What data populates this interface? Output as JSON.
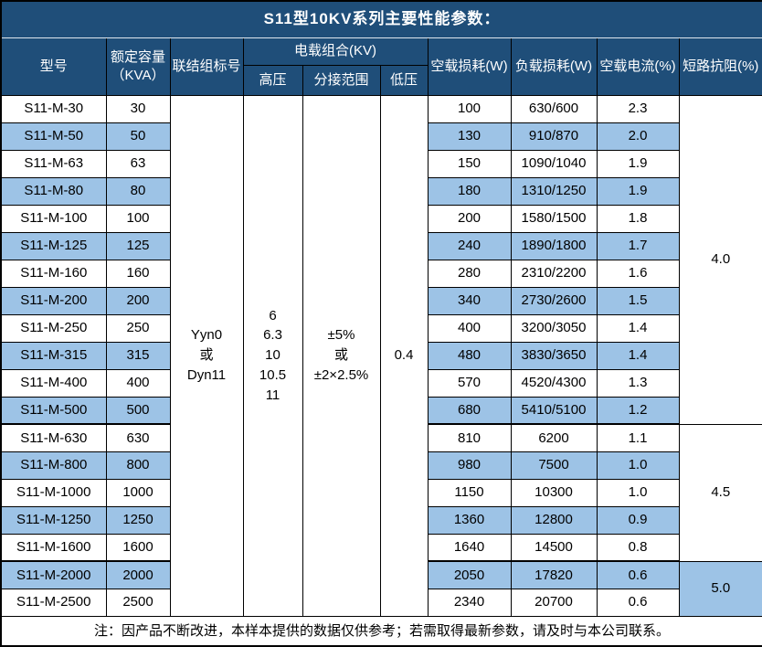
{
  "title": "S11型10KV系列主要性能参数：",
  "colors": {
    "header_bg": "#1F4E79",
    "alt_row_bg": "#9DC3E6",
    "border": "#000000"
  },
  "header": {
    "model": "型号",
    "capacity": "额定容量\n（KVA）",
    "connection": "联结组标号",
    "load_combo": "电载组合(KV)",
    "hv": "高压",
    "tap_range": "分接范围",
    "lv": "低压",
    "no_load_loss": "空载损耗(W)",
    "load_loss": "负载损耗(W)",
    "no_load_current": "空载电流(%)",
    "impedance": "短路抗阻(%)"
  },
  "merged": {
    "connection": "Yyn0\n或\nDyn11",
    "hv": "6\n6.3\n10\n10.5\n11",
    "tap_range": "±5%\n或\n±2×2.5%",
    "lv": "0.4"
  },
  "impedance_groups": [
    {
      "value": "4.0",
      "rows": 12
    },
    {
      "value": "4.5",
      "rows": 5
    },
    {
      "value": "5.0",
      "rows": 2
    }
  ],
  "rows": [
    {
      "model": "S11-M-30",
      "kva": "30",
      "no_load_loss": "100",
      "load_loss": "630/600",
      "current": "2.3"
    },
    {
      "model": "S11-M-50",
      "kva": "50",
      "no_load_loss": "130",
      "load_loss": "910/870",
      "current": "2.0"
    },
    {
      "model": "S11-M-63",
      "kva": "63",
      "no_load_loss": "150",
      "load_loss": "1090/1040",
      "current": "1.9"
    },
    {
      "model": "S11-M-80",
      "kva": "80",
      "no_load_loss": "180",
      "load_loss": "1310/1250",
      "current": "1.9"
    },
    {
      "model": "S11-M-100",
      "kva": "100",
      "no_load_loss": "200",
      "load_loss": "1580/1500",
      "current": "1.8"
    },
    {
      "model": "S11-M-125",
      "kva": "125",
      "no_load_loss": "240",
      "load_loss": "1890/1800",
      "current": "1.7"
    },
    {
      "model": "S11-M-160",
      "kva": "160",
      "no_load_loss": "280",
      "load_loss": "2310/2200",
      "current": "1.6"
    },
    {
      "model": "S11-M-200",
      "kva": "200",
      "no_load_loss": "340",
      "load_loss": "2730/2600",
      "current": "1.5"
    },
    {
      "model": "S11-M-250",
      "kva": "250",
      "no_load_loss": "400",
      "load_loss": "3200/3050",
      "current": "1.4"
    },
    {
      "model": "S11-M-315",
      "kva": "315",
      "no_load_loss": "480",
      "load_loss": "3830/3650",
      "current": "1.4"
    },
    {
      "model": "S11-M-400",
      "kva": "400",
      "no_load_loss": "570",
      "load_loss": "4520/4300",
      "current": "1.3"
    },
    {
      "model": "S11-M-500",
      "kva": "500",
      "no_load_loss": "680",
      "load_loss": "5410/5100",
      "current": "1.2"
    },
    {
      "model": "S11-M-630",
      "kva": "630",
      "no_load_loss": "810",
      "load_loss": "6200",
      "current": "1.1"
    },
    {
      "model": "S11-M-800",
      "kva": "800",
      "no_load_loss": "980",
      "load_loss": "7500",
      "current": "1.0"
    },
    {
      "model": "S11-M-1000",
      "kva": "1000",
      "no_load_loss": "1150",
      "load_loss": "10300",
      "current": "1.0"
    },
    {
      "model": "S11-M-1250",
      "kva": "1250",
      "no_load_loss": "1360",
      "load_loss": "12800",
      "current": "0.9"
    },
    {
      "model": "S11-M-1600",
      "kva": "1600",
      "no_load_loss": "1640",
      "load_loss": "14500",
      "current": "0.8"
    },
    {
      "model": "S11-M-2000",
      "kva": "2000",
      "no_load_loss": "2050",
      "load_loss": "17820",
      "current": "0.6"
    },
    {
      "model": "S11-M-2500",
      "kva": "2500",
      "no_load_loss": "2340",
      "load_loss": "20700",
      "current": "0.6"
    }
  ],
  "footer_note": "注：因产品不断改进，本样本提供的数据仅供参考；若需取得最新参数，请及时与本公司联系。"
}
